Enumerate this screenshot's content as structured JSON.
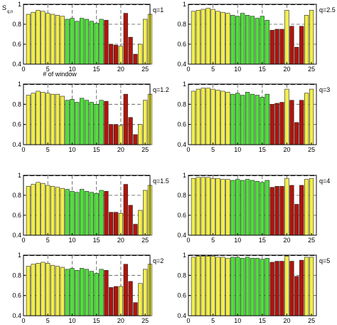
{
  "figure": {
    "ylabel_main": "S",
    "ylabel_sub": "q,n",
    "xlabel": "# of window"
  },
  "colors": {
    "yellow": "#f2ee4a",
    "green": "#4fe03a",
    "red": "#b0140c",
    "grid": "#555555"
  },
  "chart_data": [
    {
      "type": "bar",
      "q_label": "q=1",
      "xlim": [
        0,
        26
      ],
      "ylim": [
        0.4,
        1.0
      ],
      "x_ticks": [
        "0",
        "5",
        "10",
        "15",
        "20",
        "25"
      ],
      "y_ticks": [
        "0.4",
        "0.6",
        "0.8",
        "1"
      ],
      "values": [
        0.9,
        0.92,
        0.94,
        0.93,
        0.91,
        0.9,
        0.89,
        0.88,
        0.85,
        0.86,
        0.83,
        0.86,
        0.85,
        0.83,
        0.81,
        0.85,
        0.84,
        0.6,
        0.59,
        0.58,
        0.91,
        0.67,
        0.5,
        0.6,
        0.85,
        0.9
      ]
    },
    {
      "type": "bar",
      "q_label": "q=2.5",
      "xlim": [
        0,
        26
      ],
      "ylim": [
        0.4,
        1.0
      ],
      "x_ticks": [
        "0",
        "5",
        "10",
        "15",
        "20",
        "25"
      ],
      "y_ticks": [
        "0.4",
        "0.6",
        "0.8",
        "1"
      ],
      "values": [
        0.93,
        0.94,
        0.95,
        0.96,
        0.95,
        0.93,
        0.92,
        0.91,
        0.89,
        0.88,
        0.91,
        0.89,
        0.88,
        0.86,
        0.88,
        0.84,
        0.74,
        0.75,
        0.75,
        0.94,
        0.78,
        0.57,
        0.78,
        0.89,
        0.94
      ]
    },
    {
      "type": "bar",
      "q_label": "q=1.2",
      "xlim": [
        0,
        26
      ],
      "ylim": [
        0.4,
        1.0
      ],
      "x_ticks": [
        "0",
        "5",
        "10",
        "15",
        "20",
        "25"
      ],
      "y_ticks": [
        "0.4",
        "0.6",
        "0.8",
        "1"
      ],
      "values": [
        0.89,
        0.91,
        0.93,
        0.92,
        0.91,
        0.9,
        0.9,
        0.88,
        0.84,
        0.85,
        0.82,
        0.86,
        0.84,
        0.82,
        0.8,
        0.84,
        0.83,
        0.6,
        0.6,
        0.59,
        0.9,
        0.67,
        0.5,
        0.6,
        0.84,
        0.9
      ]
    },
    {
      "type": "bar",
      "q_label": "q=3",
      "xlim": [
        0,
        26
      ],
      "ylim": [
        0.4,
        1.0
      ],
      "x_ticks": [
        "0",
        "5",
        "10",
        "15",
        "20",
        "25"
      ],
      "y_ticks": [
        "0.4",
        "0.6",
        "0.8",
        "1"
      ],
      "values": [
        0.93,
        0.95,
        0.96,
        0.96,
        0.95,
        0.94,
        0.93,
        0.92,
        0.9,
        0.91,
        0.89,
        0.92,
        0.9,
        0.89,
        0.87,
        0.9,
        0.8,
        0.81,
        0.82,
        0.95,
        0.84,
        0.62,
        0.84,
        0.91,
        0.95
      ]
    },
    {
      "type": "bar",
      "q_label": "q=1.5",
      "xlim": [
        0,
        26
      ],
      "ylim": [
        0.4,
        1.0
      ],
      "x_ticks": [
        "0",
        "5",
        "10",
        "15",
        "20",
        "25"
      ],
      "y_ticks": [
        "0.4",
        "0.6",
        "0.8",
        "1"
      ],
      "values": [
        0.89,
        0.91,
        0.93,
        0.92,
        0.9,
        0.89,
        0.88,
        0.87,
        0.86,
        0.84,
        0.83,
        0.86,
        0.84,
        0.83,
        0.82,
        0.85,
        0.84,
        0.63,
        0.63,
        0.62,
        0.91,
        0.7,
        0.51,
        0.65,
        0.85,
        0.9
      ]
    },
    {
      "type": "bar",
      "q_label": "q=4",
      "xlim": [
        0,
        26
      ],
      "ylim": [
        0.4,
        1.0
      ],
      "x_ticks": [
        "0",
        "5",
        "10",
        "15",
        "20",
        "25"
      ],
      "y_ticks": [
        "0.4",
        "0.6",
        "0.8",
        "1"
      ],
      "values": [
        0.97,
        0.98,
        0.98,
        0.98,
        0.97,
        0.97,
        0.96,
        0.96,
        0.95,
        0.96,
        0.95,
        0.96,
        0.95,
        0.94,
        0.93,
        0.95,
        0.88,
        0.89,
        0.89,
        0.97,
        0.9,
        0.71,
        0.9,
        0.96,
        0.97
      ]
    },
    {
      "type": "bar",
      "q_label": "q=2",
      "xlim": [
        0,
        26
      ],
      "ylim": [
        0.4,
        1.0
      ],
      "x_ticks": [
        "0",
        "5",
        "10",
        "15",
        "20",
        "25"
      ],
      "y_ticks": [
        "0.4",
        "0.6",
        "0.8",
        "1"
      ],
      "values": [
        0.89,
        0.91,
        0.92,
        0.93,
        0.92,
        0.9,
        0.89,
        0.88,
        0.86,
        0.87,
        0.85,
        0.87,
        0.86,
        0.84,
        0.82,
        0.86,
        0.85,
        0.68,
        0.69,
        0.69,
        0.91,
        0.74,
        0.53,
        0.72,
        0.86,
        0.91
      ]
    },
    {
      "type": "bar",
      "q_label": "q=5",
      "xlim": [
        0,
        26
      ],
      "ylim": [
        0.4,
        1.0
      ],
      "x_ticks": [
        "0",
        "5",
        "10",
        "15",
        "20",
        "25"
      ],
      "y_ticks": [
        "0.4",
        "0.6",
        "0.8",
        "1"
      ],
      "values": [
        0.98,
        0.99,
        0.99,
        0.99,
        0.99,
        0.98,
        0.98,
        0.97,
        0.98,
        0.98,
        0.97,
        0.98,
        0.97,
        0.97,
        0.96,
        0.97,
        0.93,
        0.94,
        0.94,
        0.99,
        0.94,
        0.79,
        0.95,
        0.98,
        0.98
      ]
    }
  ]
}
